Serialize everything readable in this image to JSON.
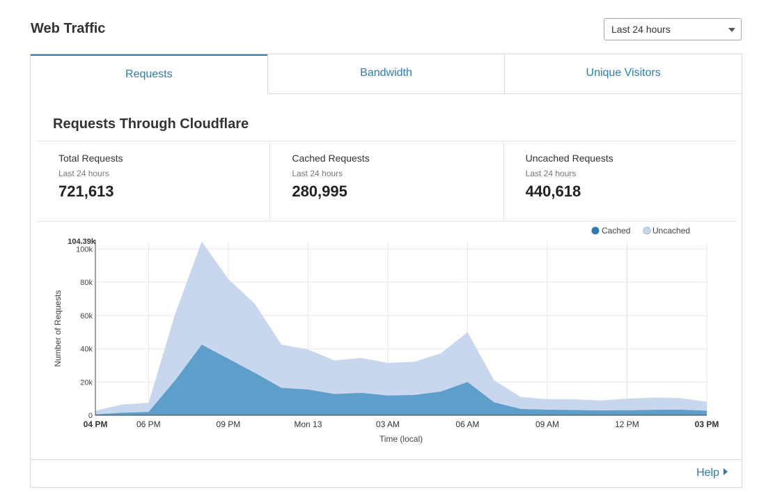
{
  "header": {
    "title": "Web Traffic",
    "range_selected": "Last 24 hours"
  },
  "tabs": [
    {
      "label": "Requests",
      "active": true
    },
    {
      "label": "Bandwidth",
      "active": false
    },
    {
      "label": "Unique Visitors",
      "active": false
    }
  ],
  "section": {
    "title": "Requests Through Cloudflare"
  },
  "stats": [
    {
      "label": "Total Requests",
      "sub": "Last 24 hours",
      "value": "721,613"
    },
    {
      "label": "Cached Requests",
      "sub": "Last 24 hours",
      "value": "280,995"
    },
    {
      "label": "Uncached Requests",
      "sub": "Last 24 hours",
      "value": "440,618"
    }
  ],
  "colors": {
    "accent": "#2c7cb0",
    "cached": "#5e9ecb",
    "uncached": "#c8d7ee"
  },
  "chart_data": {
    "type": "area",
    "stacked": true,
    "xlabel": "Time (local)",
    "ylabel": "Number of Requests",
    "ylim": [
      0,
      104390
    ],
    "max_label": "104.39k",
    "y_ticks": [
      {
        "v": 0,
        "label": "0"
      },
      {
        "v": 20000,
        "label": "20k"
      },
      {
        "v": 40000,
        "label": "40k"
      },
      {
        "v": 60000,
        "label": "60k"
      },
      {
        "v": 80000,
        "label": "80k"
      },
      {
        "v": 100000,
        "label": "100k"
      }
    ],
    "x_ticks": [
      {
        "i": 0,
        "label": "04 PM",
        "bold": true
      },
      {
        "i": 2,
        "label": "06 PM",
        "bold": false
      },
      {
        "i": 5,
        "label": "09 PM",
        "bold": false
      },
      {
        "i": 8,
        "label": "Mon 13",
        "bold": false
      },
      {
        "i": 11,
        "label": "03 AM",
        "bold": false
      },
      {
        "i": 14,
        "label": "06 AM",
        "bold": false
      },
      {
        "i": 17,
        "label": "09 AM",
        "bold": false
      },
      {
        "i": 20,
        "label": "12 PM",
        "bold": false
      },
      {
        "i": 23,
        "label": "03 PM",
        "bold": true
      }
    ],
    "legend": {
      "position": "top-right"
    },
    "grid": true,
    "series": [
      {
        "name": "Cached",
        "values": [
          500,
          1500,
          2000,
          21000,
          42500,
          34000,
          25500,
          16500,
          15500,
          12800,
          13500,
          11900,
          12200,
          14300,
          20000,
          7800,
          3800,
          3400,
          3200,
          2900,
          3000,
          3300,
          3400,
          2700
        ]
      },
      {
        "name": "Uncached",
        "values": [
          2200,
          5000,
          5500,
          40000,
          62000,
          48000,
          41500,
          26000,
          24000,
          20200,
          21000,
          19600,
          20000,
          23000,
          30000,
          13200,
          7200,
          6300,
          6500,
          6000,
          7000,
          7300,
          7000,
          5500
        ]
      }
    ]
  },
  "footer": {
    "help_label": "Help"
  }
}
